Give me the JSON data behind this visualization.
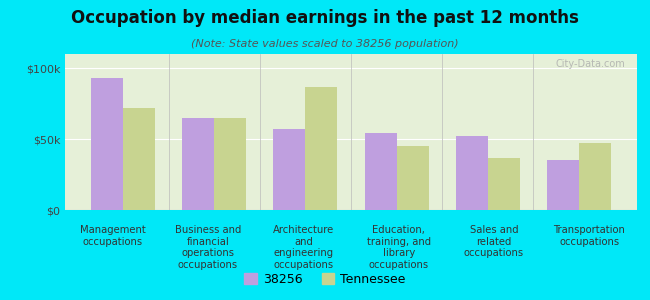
{
  "title": "Occupation by median earnings in the past 12 months",
  "subtitle": "(Note: State values scaled to 38256 population)",
  "categories": [
    "Management\noccupations",
    "Business and\nfinancial\noperations\noccupations",
    "Architecture\nand\nengineering\noccupations",
    "Education,\ntraining, and\nlibrary\noccupations",
    "Sales and\nrelated\noccupations",
    "Transportation\noccupations"
  ],
  "values_38256": [
    93000,
    65000,
    57000,
    54000,
    52000,
    35000
  ],
  "values_tennessee": [
    72000,
    65000,
    87000,
    45000,
    37000,
    47000
  ],
  "color_38256": "#bf9fdf",
  "color_tennessee": "#c8d490",
  "background_outer": "#00e8f8",
  "background_inner": "#e6f0d8",
  "ylim": [
    0,
    110000
  ],
  "yticks": [
    0,
    50000,
    100000
  ],
  "ytick_labels": [
    "$0",
    "$50k",
    "$100k"
  ],
  "bar_width": 0.35,
  "legend_label_38256": "38256",
  "legend_label_tennessee": "Tennessee",
  "watermark": "City-Data.com"
}
